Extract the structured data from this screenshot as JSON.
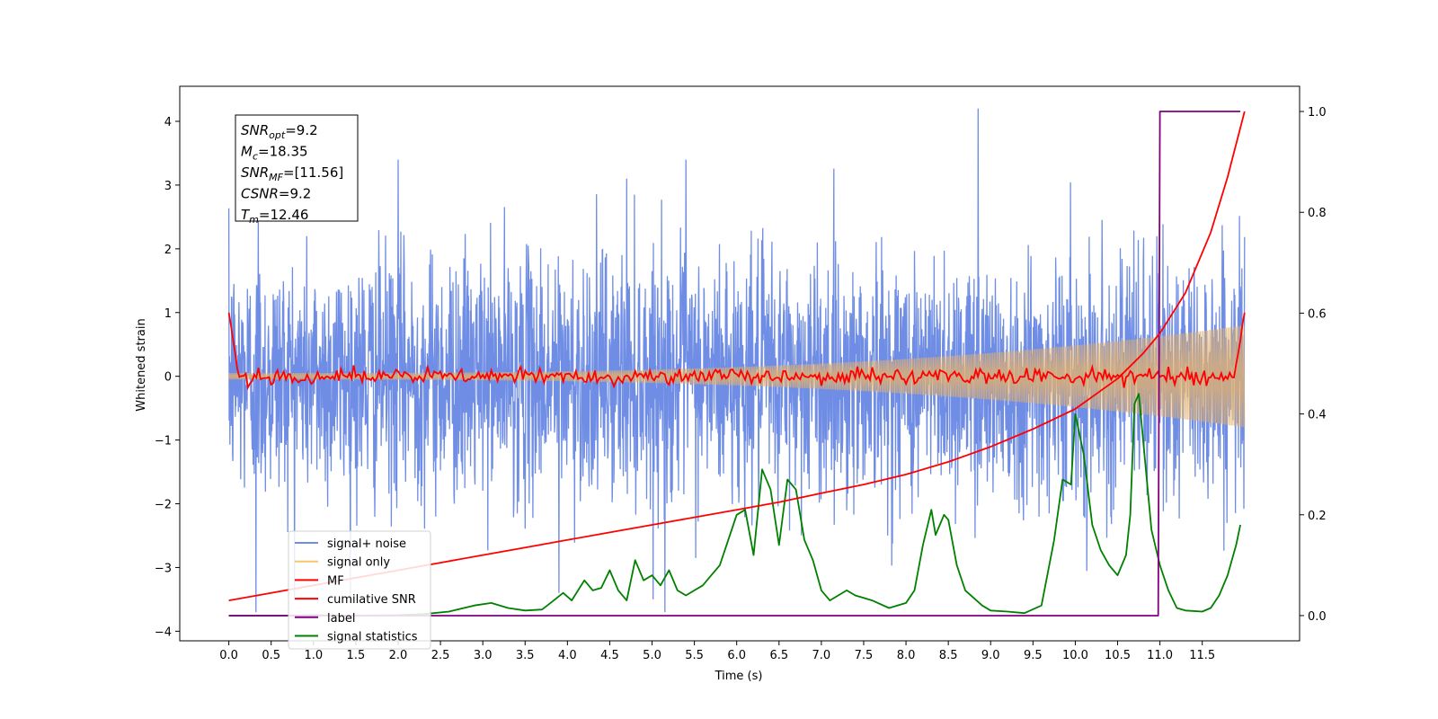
{
  "chart_data": {
    "type": "line",
    "xlabel": "Time (s)",
    "ylabel": "Whitened strain",
    "xlim": [
      -0.58,
      12.65
    ],
    "ylim": [
      -4.15,
      4.55
    ],
    "y2lim": [
      -0.05,
      1.05
    ],
    "x_ticks": [
      "0.0",
      "0.5",
      "1.0",
      "1.5",
      "2.0",
      "2.5",
      "3.0",
      "3.5",
      "4.0",
      "4.5",
      "5.0",
      "5.5",
      "6.0",
      "6.5",
      "7.0",
      "7.5",
      "8.0",
      "8.5",
      "9.0",
      "9.5",
      "10.0",
      "10.5",
      "11.0",
      "11.5"
    ],
    "y_ticks": [
      "4",
      "3",
      "2",
      "1",
      "0",
      "−1",
      "−2",
      "−3",
      "−4"
    ],
    "y2_ticks": [
      "1.0",
      "0.8",
      "0.6",
      "0.4",
      "0.2",
      "0.0"
    ],
    "annotation": {
      "lines": [
        {
          "base": "SNR",
          "sub": "opt",
          "rest": "=9.2"
        },
        {
          "base": "M",
          "sub": "c",
          "rest": "=18.35"
        },
        {
          "base": "SNR",
          "sub": "MF",
          "rest": "=[11.56]"
        },
        {
          "base": "CSNR",
          "sub": "",
          "rest": "=9.2"
        },
        {
          "base": "T",
          "sub": "m",
          "rest": "=12.46"
        }
      ]
    },
    "legend": {
      "position": "lower-left",
      "entries": [
        {
          "label": "signal+ noise",
          "color": "#6f8de4"
        },
        {
          "label": "signal only",
          "color": "#f5c96a"
        },
        {
          "label": "MF",
          "color": "#ff0000"
        },
        {
          "label": "cumilative SNR",
          "color": "#ff0000"
        },
        {
          "label": "label",
          "color": "#800080"
        },
        {
          "label": "signal statistics",
          "color": "#008000"
        }
      ]
    },
    "series": [
      {
        "name": "signal+ noise",
        "axis": "left",
        "color": "#6f8de4",
        "style": "noise",
        "x_range": [
          0.0,
          12.0
        ],
        "amplitude_sd": 1.0,
        "extreme_peaks": [
          [
            0.35,
            2.5
          ],
          [
            0.32,
            -3.7
          ],
          [
            2.0,
            3.4
          ],
          [
            4.7,
            3.1
          ],
          [
            5.4,
            3.4
          ],
          [
            8.85,
            4.2
          ],
          [
            3.9,
            -3.4
          ],
          [
            5.15,
            -3.7
          ]
        ]
      },
      {
        "name": "signal only",
        "axis": "left",
        "color": "#e0b070",
        "style": "chirp",
        "x_range": [
          0.0,
          12.0
        ],
        "amplitude_start": 0.05,
        "amplitude_end": 0.8
      },
      {
        "name": "MF",
        "axis": "left",
        "color": "#ff0000",
        "style": "mf",
        "x_range": [
          0.0,
          12.0
        ],
        "edge_value": 1.0,
        "center_value": 0.0,
        "wiggle": 0.1
      },
      {
        "name": "cumilative SNR",
        "axis": "right",
        "color": "#ff0000",
        "x": [
          0.0,
          0.5,
          1.0,
          1.5,
          2.0,
          2.5,
          3.0,
          3.5,
          4.0,
          4.5,
          5.0,
          5.5,
          6.0,
          6.5,
          7.0,
          7.5,
          8.0,
          8.5,
          9.0,
          9.5,
          10.0,
          10.5,
          10.8,
          11.0,
          11.3,
          11.6,
          11.8,
          12.0
        ],
        "values": [
          0.03,
          0.045,
          0.06,
          0.075,
          0.09,
          0.105,
          0.12,
          0.135,
          0.15,
          0.165,
          0.18,
          0.195,
          0.21,
          0.225,
          0.243,
          0.26,
          0.28,
          0.305,
          0.335,
          0.37,
          0.41,
          0.47,
          0.52,
          0.56,
          0.64,
          0.76,
          0.87,
          1.0
        ]
      },
      {
        "name": "label",
        "axis": "right",
        "color": "#800080",
        "x": [
          0.0,
          10.98,
          11.0,
          11.95
        ],
        "values": [
          0.0,
          0.0,
          1.0,
          1.0
        ]
      },
      {
        "name": "signal statistics",
        "axis": "right",
        "color": "#008000",
        "x": [
          0.0,
          0.6,
          1.0,
          1.5,
          2.0,
          2.3,
          2.6,
          2.9,
          3.1,
          3.3,
          3.5,
          3.7,
          3.8,
          3.95,
          4.05,
          4.2,
          4.3,
          4.4,
          4.5,
          4.6,
          4.7,
          4.8,
          4.9,
          5.0,
          5.1,
          5.2,
          5.3,
          5.4,
          5.5,
          5.6,
          5.7,
          5.8,
          5.9,
          6.0,
          6.1,
          6.2,
          6.3,
          6.4,
          6.5,
          6.6,
          6.7,
          6.8,
          6.9,
          7.0,
          7.1,
          7.2,
          7.3,
          7.4,
          7.5,
          7.6,
          7.8,
          8.0,
          8.1,
          8.2,
          8.3,
          8.35,
          8.4,
          8.45,
          8.5,
          8.6,
          8.7,
          8.8,
          8.9,
          9.0,
          9.2,
          9.4,
          9.6,
          9.75,
          9.85,
          9.95,
          10.0,
          10.1,
          10.2,
          10.3,
          10.4,
          10.5,
          10.6,
          10.65,
          10.7,
          10.75,
          10.8,
          10.9,
          11.0,
          11.1,
          11.2,
          11.3,
          11.5,
          11.6,
          11.7,
          11.8,
          11.9,
          11.95
        ],
        "values": [
          0.0,
          0.0,
          0.001,
          0.0,
          0.001,
          0.003,
          0.008,
          0.02,
          0.025,
          0.015,
          0.01,
          0.012,
          0.025,
          0.045,
          0.03,
          0.07,
          0.05,
          0.055,
          0.09,
          0.05,
          0.03,
          0.11,
          0.07,
          0.08,
          0.06,
          0.09,
          0.05,
          0.04,
          0.05,
          0.06,
          0.08,
          0.1,
          0.15,
          0.2,
          0.21,
          0.12,
          0.29,
          0.25,
          0.14,
          0.27,
          0.25,
          0.15,
          0.11,
          0.05,
          0.03,
          0.04,
          0.05,
          0.04,
          0.035,
          0.03,
          0.015,
          0.025,
          0.05,
          0.14,
          0.21,
          0.16,
          0.18,
          0.2,
          0.19,
          0.1,
          0.05,
          0.035,
          0.02,
          0.01,
          0.008,
          0.005,
          0.02,
          0.15,
          0.27,
          0.26,
          0.4,
          0.32,
          0.18,
          0.13,
          0.1,
          0.08,
          0.12,
          0.2,
          0.42,
          0.44,
          0.35,
          0.17,
          0.1,
          0.05,
          0.015,
          0.01,
          0.008,
          0.015,
          0.04,
          0.08,
          0.14,
          0.18
        ]
      }
    ]
  }
}
